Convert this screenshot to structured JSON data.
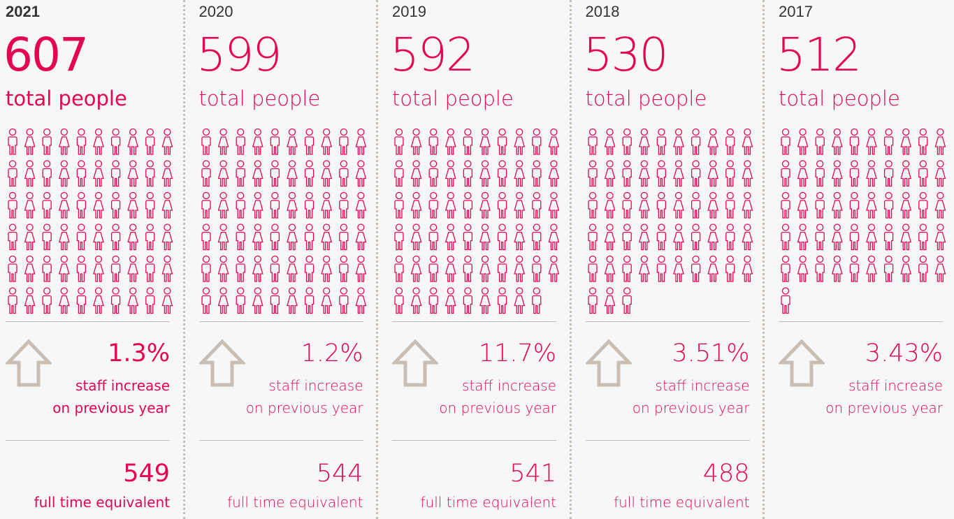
{
  "columns": [
    {
      "year": "2021",
      "total": 607,
      "total_label": "total people",
      "increase": "1.3%",
      "increase_label": "staff increase",
      "increase_note": "on previous year",
      "fte": 549,
      "fte_label": "full time equivalent"
    },
    {
      "year": "2020",
      "total": 599,
      "total_label": "total people",
      "increase": "1.2%",
      "increase_label": "staff increase",
      "increase_note": "on previous year",
      "fte": 544,
      "fte_label": "full time equivalent"
    },
    {
      "year": "2019",
      "total": 592,
      "total_label": "total people",
      "increase": "11.7%",
      "increase_label": "staff increase",
      "increase_note": "on previous year",
      "fte": 541,
      "fte_label": "full time equivalent"
    },
    {
      "year": "2018",
      "total": 530,
      "total_label": "total people",
      "increase": "3.51%",
      "increase_label": "staff increase",
      "increase_note": "on previous year",
      "fte": 488,
      "fte_label": "full time equivalent"
    },
    {
      "year": "2017",
      "total": 512,
      "total_label": "total people",
      "increase": "3.43%",
      "increase_label": "staff increase",
      "increase_note": "on previous year"
    }
  ]
}
